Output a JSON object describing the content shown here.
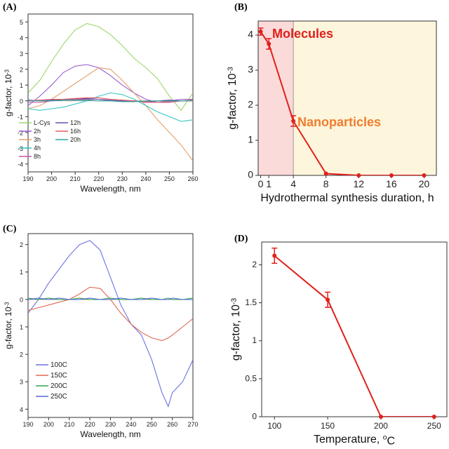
{
  "chart_data": [
    {
      "panel": "(A)",
      "type": "line",
      "xlabel": "Wavelength, nm",
      "ylabel": "g-factor, 10",
      "ylabel_sup": "-3",
      "xlim": [
        190,
        260
      ],
      "ylim": [
        -4.5,
        5.5
      ],
      "xticks": [
        190,
        200,
        210,
        220,
        230,
        240,
        250,
        260
      ],
      "yticks": [
        -4,
        -3,
        -2,
        -1,
        0,
        1,
        2,
        3,
        4,
        5
      ],
      "x": [
        190,
        195,
        200,
        205,
        210,
        215,
        220,
        225,
        230,
        235,
        240,
        245,
        250,
        255,
        260
      ],
      "series": [
        {
          "name": "L-Cys",
          "color": "#9bd66a",
          "values": [
            0.5,
            1.3,
            2.5,
            3.6,
            4.5,
            4.9,
            4.7,
            4.2,
            3.5,
            2.7,
            2.1,
            1.4,
            0.3,
            -0.6,
            0.5
          ]
        },
        {
          "name": "2h",
          "color": "#9a5ccf",
          "values": [
            -0.3,
            0.3,
            1.0,
            1.8,
            2.2,
            2.3,
            2.1,
            1.6,
            1.0,
            0.5,
            0.1,
            -0.1,
            0.0,
            0.1,
            0.1
          ]
        },
        {
          "name": "3h",
          "color": "#e3a06a",
          "values": [
            -0.5,
            -0.3,
            0.1,
            0.6,
            1.1,
            1.6,
            2.1,
            2.0,
            1.3,
            0.5,
            -0.3,
            -1.2,
            -2.0,
            -2.8,
            -3.8
          ]
        },
        {
          "name": "4h",
          "color": "#38c7c7",
          "values": [
            -0.5,
            -0.6,
            -0.5,
            -0.4,
            -0.2,
            0.0,
            0.3,
            0.5,
            0.4,
            0.1,
            -0.3,
            -0.7,
            -1.0,
            -1.3,
            -1.2
          ]
        },
        {
          "name": "8h",
          "color": "#c257a9",
          "values": [
            -0.1,
            -0.1,
            0.0,
            0.1,
            0.1,
            0.1,
            0.1,
            0.0,
            0.0,
            0.0,
            -0.1,
            -0.1,
            -0.1,
            0.0,
            0.0
          ]
        },
        {
          "name": "12h",
          "color": "#6a4fb3",
          "values": [
            0.05,
            0.0,
            0.05,
            0.1,
            0.15,
            0.15,
            0.1,
            0.05,
            0.0,
            0.0,
            -0.05,
            0.0,
            0.05,
            0.0,
            0.05
          ]
        },
        {
          "name": "16h",
          "color": "#e46060",
          "values": [
            0.0,
            0.05,
            0.1,
            0.1,
            0.15,
            0.2,
            0.2,
            0.1,
            0.05,
            0.0,
            -0.05,
            -0.1,
            -0.05,
            0.0,
            0.05
          ]
        },
        {
          "name": "20h",
          "color": "#2aa59c",
          "values": [
            0.0,
            0.0,
            0.0,
            0.05,
            0.05,
            0.05,
            0.0,
            0.0,
            -0.05,
            -0.05,
            0.0,
            0.0,
            0.0,
            0.0,
            0.0
          ]
        }
      ]
    },
    {
      "panel": "(B)",
      "type": "line",
      "xlabel": "Hydrothermal synthesis duration, h",
      "ylabel": "g-factor, 10",
      "ylabel_sup": "-3",
      "xlim": [
        -0.3,
        21.5
      ],
      "ylim": [
        0,
        4.4
      ],
      "xticks": [
        0,
        1,
        4,
        8,
        12,
        16,
        20
      ],
      "yticks": [
        0,
        1,
        2,
        3,
        4
      ],
      "regions": [
        {
          "label": "Molecules",
          "x_from": -0.3,
          "x_to": 4,
          "color": "#fbdada",
          "label_color": "#e0201c"
        },
        {
          "label": "Nanoparticles",
          "x_from": 4,
          "x_to": 21.5,
          "color": "#fdf5dc",
          "label_color": "#ef7d2e"
        }
      ],
      "series": [
        {
          "name": "",
          "color": "#e0201c",
          "x": [
            0,
            1,
            4,
            8,
            12,
            16,
            20
          ],
          "values": [
            4.1,
            3.75,
            1.55,
            0.05,
            0.0,
            0.0,
            0.0
          ],
          "errors": [
            0.1,
            0.15,
            0.15,
            0.0,
            0.0,
            0.0,
            0.0
          ]
        }
      ]
    },
    {
      "panel": "(C)",
      "type": "line",
      "xlabel": "Wavelength, nm",
      "ylabel": "g-factor, 10",
      "ylabel_sup": "-3",
      "xlim": [
        190,
        270
      ],
      "ylim": [
        -4.3,
        2.4
      ],
      "xticks": [
        190,
        200,
        210,
        220,
        230,
        240,
        250,
        260,
        270
      ],
      "yticks": [
        2,
        1,
        0,
        -1,
        -2,
        -3,
        -4
      ],
      "ytick_labels": [
        "2",
        "1",
        "0",
        "1",
        "2",
        "3",
        "4"
      ],
      "x": [
        190,
        195,
        200,
        205,
        210,
        215,
        220,
        225,
        230,
        235,
        240,
        245,
        250,
        255,
        258,
        260,
        265,
        270
      ],
      "series": [
        {
          "name": "100C",
          "color": "#6c72e0",
          "values": [
            -0.5,
            0.0,
            0.6,
            1.1,
            1.6,
            2.0,
            2.15,
            1.8,
            0.8,
            -0.2,
            -0.9,
            -1.3,
            -2.2,
            -3.4,
            -3.9,
            -3.4,
            -3.0,
            -2.2
          ]
        },
        {
          "name": "150C",
          "color": "#e06850",
          "values": [
            -0.4,
            -0.3,
            -0.2,
            -0.1,
            0.0,
            0.2,
            0.45,
            0.4,
            0.0,
            -0.5,
            -0.9,
            -1.2,
            -1.4,
            -1.5,
            -1.4,
            -1.3,
            -1.0,
            -0.7
          ]
        },
        {
          "name": "200C",
          "color": "#2ea84f",
          "values": [
            0.05,
            0.0,
            0.05,
            0.0,
            0.0,
            0.05,
            0.0,
            0.0,
            0.05,
            0.0,
            0.0,
            0.05,
            0.0,
            0.0,
            0.05,
            0.0,
            0.0,
            0.05
          ]
        },
        {
          "name": "250C",
          "color": "#5a68d8",
          "values": [
            0.0,
            0.05,
            0.0,
            0.05,
            0.0,
            0.0,
            0.05,
            0.0,
            0.0,
            0.05,
            0.0,
            0.0,
            0.05,
            0.0,
            0.0,
            0.05,
            0.0,
            0.0
          ]
        }
      ]
    },
    {
      "panel": "(D)",
      "type": "line",
      "xlabel": "Temperature, ",
      "xlabel_sup": "o",
      "xlabel_suffix": "C",
      "ylabel": "g-factor, 10",
      "ylabel_sup": "-3",
      "xlim": [
        88,
        262
      ],
      "ylim": [
        0,
        2.3
      ],
      "xticks": [
        100,
        150,
        200,
        250
      ],
      "yticks": [
        0,
        0.5,
        1,
        1.5,
        2
      ],
      "series": [
        {
          "name": "",
          "color": "#e0201c",
          "x": [
            100,
            150,
            200,
            250
          ],
          "values": [
            2.12,
            1.54,
            0.0,
            0.0
          ],
          "errors": [
            0.1,
            0.1,
            0.0,
            0.0
          ]
        }
      ]
    }
  ]
}
